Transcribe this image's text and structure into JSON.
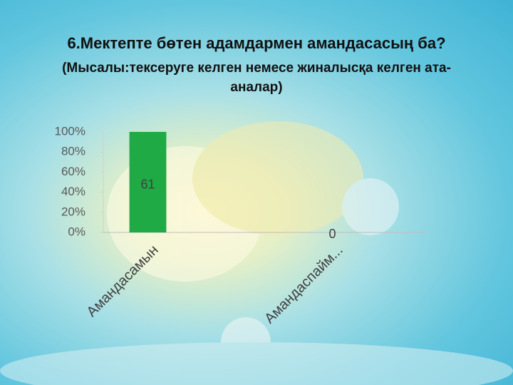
{
  "title": "6.Мектепте бөтен адамдармен амандасасың ба?",
  "subtitle": [
    "(Мысалы:тексеруге келген немесе жиналысқа келген ата-",
    "аналар)"
  ],
  "chart_data": {
    "type": "bar",
    "categories": [
      "Амандасамын",
      "Амандаспайм..."
    ],
    "values": [
      100,
      0
    ],
    "counts": [
      61,
      0
    ],
    "color": "#1faa46",
    "ylim": [
      0,
      100
    ],
    "yticks": [
      {
        "value": 0,
        "label": "0%"
      },
      {
        "value": 20,
        "label": "20%"
      },
      {
        "value": 40,
        "label": "40%"
      },
      {
        "value": 60,
        "label": "60%"
      },
      {
        "value": 80,
        "label": "80%"
      },
      {
        "value": 100,
        "label": "100%"
      }
    ],
    "grid": false
  }
}
